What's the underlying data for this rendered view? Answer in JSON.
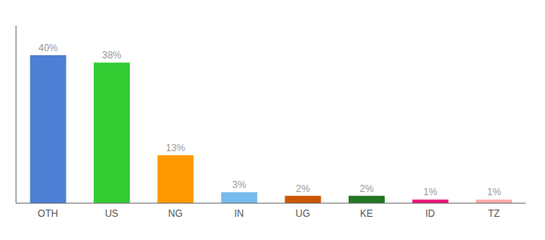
{
  "chart_data": {
    "type": "bar",
    "categories": [
      "OTH",
      "US",
      "NG",
      "IN",
      "UG",
      "KE",
      "ID",
      "TZ"
    ],
    "values": [
      40,
      38,
      13,
      3,
      2,
      2,
      1,
      1
    ],
    "value_labels": [
      "40%",
      "38%",
      "13%",
      "3%",
      "2%",
      "2%",
      "1%",
      "1%"
    ],
    "data_labels": true,
    "colors": [
      "#4d7fd4",
      "#33cc33",
      "#ff9900",
      "#77bbee",
      "#cc5500",
      "#227722",
      "#ee1177",
      "#ffaaaa"
    ],
    "ylim": [
      0,
      48
    ],
    "grid": false,
    "tick_labels": "x"
  }
}
